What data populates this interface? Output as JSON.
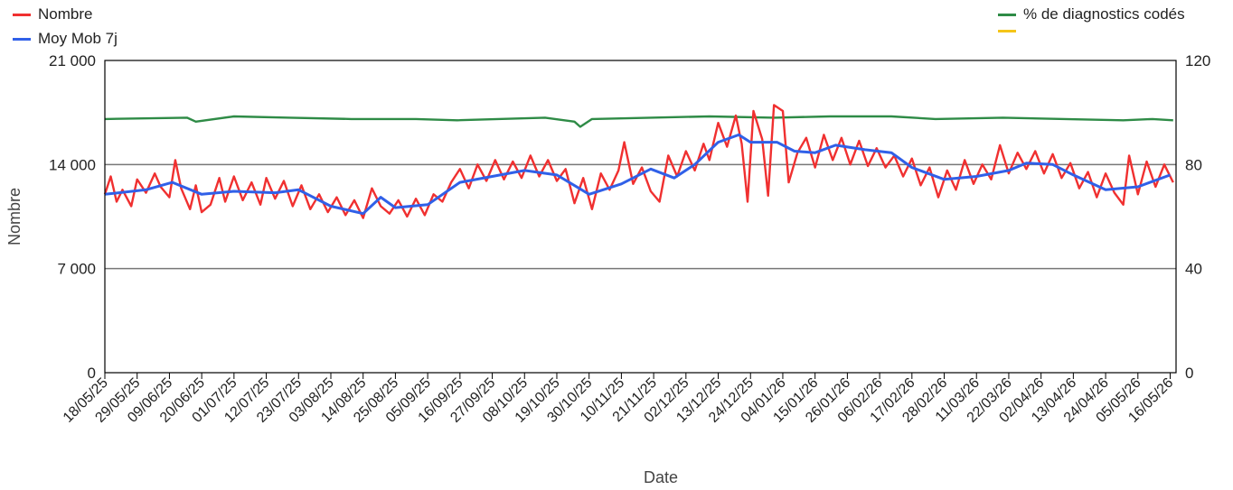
{
  "chart_data": {
    "type": "line",
    "xlabel": "Date",
    "ylabel": "Nombre",
    "ylim": [
      0,
      21000
    ],
    "y2lim": [
      0,
      120
    ],
    "yticks": [
      "0",
      "7 000",
      "14 000",
      "21 000"
    ],
    "y2ticks": [
      "0",
      "40",
      "80",
      "120"
    ],
    "x_start": "2025-05-18",
    "x_end": "2026-05-18",
    "x_tick_labels": [
      "18/05/25",
      "29/05/25",
      "09/06/25",
      "20/06/25",
      "01/07/25",
      "12/07/25",
      "23/07/25",
      "03/08/25",
      "14/08/25",
      "25/08/25",
      "05/09/25",
      "16/09/25",
      "27/09/25",
      "08/10/25",
      "19/10/25",
      "30/10/25",
      "10/11/25",
      "21/11/25",
      "02/12/25",
      "13/12/25",
      "24/12/25",
      "04/01/26",
      "15/01/26",
      "26/01/26",
      "06/02/26",
      "17/02/26",
      "28/02/26",
      "11/03/26",
      "22/03/26",
      "02/04/26",
      "13/04/26",
      "24/04/26",
      "05/05/26",
      "16/05/26"
    ],
    "grid": true,
    "legend_left": [
      {
        "label": "Nombre",
        "color": "#f03030"
      },
      {
        "label": "Moy Mob 7j",
        "color": "#3060e8"
      }
    ],
    "legend_right": [
      {
        "label": "% de diagnostics codés",
        "color": "#2e8b46"
      },
      {
        "label": "",
        "color": "#f5c518"
      }
    ],
    "series": [
      {
        "name": "Moy Mob 7j",
        "axis": "left",
        "color": "#3060e8",
        "points": [
          [
            "2025-05-18",
            12000
          ],
          [
            "2025-06-01",
            12300
          ],
          [
            "2025-06-10",
            12800
          ],
          [
            "2025-06-20",
            12000
          ],
          [
            "2025-07-01",
            12200
          ],
          [
            "2025-07-15",
            12100
          ],
          [
            "2025-07-23",
            12300
          ],
          [
            "2025-08-03",
            11200
          ],
          [
            "2025-08-14",
            10700
          ],
          [
            "2025-08-20",
            11800
          ],
          [
            "2025-08-25",
            11100
          ],
          [
            "2025-09-05",
            11300
          ],
          [
            "2025-09-16",
            12800
          ],
          [
            "2025-09-27",
            13200
          ],
          [
            "2025-10-08",
            13600
          ],
          [
            "2025-10-19",
            13300
          ],
          [
            "2025-10-30",
            12000
          ],
          [
            "2025-11-10",
            12700
          ],
          [
            "2025-11-20",
            13700
          ],
          [
            "2025-11-28",
            13100
          ],
          [
            "2025-12-05",
            14000
          ],
          [
            "2025-12-13",
            15500
          ],
          [
            "2025-12-20",
            16000
          ],
          [
            "2025-12-24",
            15500
          ],
          [
            "2026-01-02",
            15500
          ],
          [
            "2026-01-08",
            14900
          ],
          [
            "2026-01-15",
            14800
          ],
          [
            "2026-01-22",
            15300
          ],
          [
            "2026-02-01",
            15000
          ],
          [
            "2026-02-10",
            14800
          ],
          [
            "2026-02-17",
            13800
          ],
          [
            "2026-02-28",
            13000
          ],
          [
            "2026-03-11",
            13200
          ],
          [
            "2026-03-22",
            13600
          ],
          [
            "2026-03-28",
            14100
          ],
          [
            "2026-04-06",
            14000
          ],
          [
            "2026-04-13",
            13300
          ],
          [
            "2026-04-24",
            12300
          ],
          [
            "2026-05-05",
            12500
          ],
          [
            "2026-05-16",
            13300
          ]
        ]
      },
      {
        "name": "Nombre",
        "axis": "left",
        "color": "#f03030",
        "points": [
          [
            "2025-05-18",
            12000
          ],
          [
            "2025-05-20",
            13200
          ],
          [
            "2025-05-22",
            11500
          ],
          [
            "2025-05-24",
            12300
          ],
          [
            "2025-05-27",
            11200
          ],
          [
            "2025-05-29",
            13000
          ],
          [
            "2025-06-01",
            12100
          ],
          [
            "2025-06-04",
            13400
          ],
          [
            "2025-06-06",
            12500
          ],
          [
            "2025-06-09",
            11800
          ],
          [
            "2025-06-11",
            14300
          ],
          [
            "2025-06-13",
            12400
          ],
          [
            "2025-06-16",
            11000
          ],
          [
            "2025-06-18",
            12600
          ],
          [
            "2025-06-20",
            10800
          ],
          [
            "2025-06-23",
            11300
          ],
          [
            "2025-06-26",
            13100
          ],
          [
            "2025-06-28",
            11500
          ],
          [
            "2025-07-01",
            13200
          ],
          [
            "2025-07-04",
            11600
          ],
          [
            "2025-07-07",
            12800
          ],
          [
            "2025-07-10",
            11300
          ],
          [
            "2025-07-12",
            13100
          ],
          [
            "2025-07-15",
            11700
          ],
          [
            "2025-07-18",
            12900
          ],
          [
            "2025-07-21",
            11200
          ],
          [
            "2025-07-24",
            12600
          ],
          [
            "2025-07-27",
            11000
          ],
          [
            "2025-07-30",
            12000
          ],
          [
            "2025-08-02",
            10800
          ],
          [
            "2025-08-05",
            11800
          ],
          [
            "2025-08-08",
            10600
          ],
          [
            "2025-08-11",
            11600
          ],
          [
            "2025-08-14",
            10400
          ],
          [
            "2025-08-17",
            12400
          ],
          [
            "2025-08-20",
            11200
          ],
          [
            "2025-08-23",
            10700
          ],
          [
            "2025-08-26",
            11600
          ],
          [
            "2025-08-29",
            10500
          ],
          [
            "2025-09-01",
            11700
          ],
          [
            "2025-09-04",
            10600
          ],
          [
            "2025-09-07",
            12000
          ],
          [
            "2025-09-10",
            11500
          ],
          [
            "2025-09-13",
            12800
          ],
          [
            "2025-09-16",
            13700
          ],
          [
            "2025-09-19",
            12400
          ],
          [
            "2025-09-22",
            14000
          ],
          [
            "2025-09-25",
            12900
          ],
          [
            "2025-09-28",
            14300
          ],
          [
            "2025-10-01",
            13000
          ],
          [
            "2025-10-04",
            14200
          ],
          [
            "2025-10-07",
            13100
          ],
          [
            "2025-10-10",
            14600
          ],
          [
            "2025-10-13",
            13200
          ],
          [
            "2025-10-16",
            14300
          ],
          [
            "2025-10-19",
            12900
          ],
          [
            "2025-10-22",
            13700
          ],
          [
            "2025-10-25",
            11400
          ],
          [
            "2025-10-28",
            13100
          ],
          [
            "2025-10-31",
            11000
          ],
          [
            "2025-11-03",
            13400
          ],
          [
            "2025-11-06",
            12300
          ],
          [
            "2025-11-09",
            13600
          ],
          [
            "2025-11-11",
            15500
          ],
          [
            "2025-11-14",
            12700
          ],
          [
            "2025-11-17",
            13800
          ],
          [
            "2025-11-20",
            12200
          ],
          [
            "2025-11-23",
            11500
          ],
          [
            "2025-11-26",
            14600
          ],
          [
            "2025-11-29",
            13200
          ],
          [
            "2025-12-02",
            14900
          ],
          [
            "2025-12-05",
            13600
          ],
          [
            "2025-12-08",
            15400
          ],
          [
            "2025-12-10",
            14300
          ],
          [
            "2025-12-13",
            16800
          ],
          [
            "2025-12-16",
            15200
          ],
          [
            "2025-12-19",
            17300
          ],
          [
            "2025-12-21",
            15400
          ],
          [
            "2025-12-23",
            11500
          ],
          [
            "2025-12-25",
            17600
          ],
          [
            "2025-12-28",
            15700
          ],
          [
            "2025-12-30",
            11900
          ],
          [
            "2026-01-01",
            18000
          ],
          [
            "2026-01-04",
            17600
          ],
          [
            "2026-01-06",
            12800
          ],
          [
            "2026-01-09",
            14800
          ],
          [
            "2026-01-12",
            15800
          ],
          [
            "2026-01-15",
            13800
          ],
          [
            "2026-01-18",
            16000
          ],
          [
            "2026-01-21",
            14300
          ],
          [
            "2026-01-24",
            15800
          ],
          [
            "2026-01-27",
            14000
          ],
          [
            "2026-01-30",
            15600
          ],
          [
            "2026-02-02",
            13900
          ],
          [
            "2026-02-05",
            15100
          ],
          [
            "2026-02-08",
            13800
          ],
          [
            "2026-02-11",
            14600
          ],
          [
            "2026-02-14",
            13200
          ],
          [
            "2026-02-17",
            14400
          ],
          [
            "2026-02-20",
            12600
          ],
          [
            "2026-02-23",
            13800
          ],
          [
            "2026-02-26",
            11800
          ],
          [
            "2026-03-01",
            13600
          ],
          [
            "2026-03-04",
            12300
          ],
          [
            "2026-03-07",
            14300
          ],
          [
            "2026-03-10",
            12700
          ],
          [
            "2026-03-13",
            14000
          ],
          [
            "2026-03-16",
            13000
          ],
          [
            "2026-03-19",
            15300
          ],
          [
            "2026-03-22",
            13400
          ],
          [
            "2026-03-25",
            14800
          ],
          [
            "2026-03-28",
            13700
          ],
          [
            "2026-03-31",
            14900
          ],
          [
            "2026-04-03",
            13400
          ],
          [
            "2026-04-06",
            14700
          ],
          [
            "2026-04-09",
            13100
          ],
          [
            "2026-04-12",
            14100
          ],
          [
            "2026-04-15",
            12400
          ],
          [
            "2026-04-18",
            13500
          ],
          [
            "2026-04-21",
            11800
          ],
          [
            "2026-04-24",
            13400
          ],
          [
            "2026-04-27",
            12100
          ],
          [
            "2026-04-30",
            11300
          ],
          [
            "2026-05-02",
            14600
          ],
          [
            "2026-05-05",
            12000
          ],
          [
            "2026-05-08",
            14200
          ],
          [
            "2026-05-11",
            12500
          ],
          [
            "2026-05-14",
            14000
          ],
          [
            "2026-05-17",
            12800
          ]
        ]
      },
      {
        "name": "% de diagnostics codés",
        "axis": "right",
        "color": "#2e8b46",
        "points": [
          [
            "2025-05-18",
            97.5
          ],
          [
            "2025-06-15",
            98
          ],
          [
            "2025-06-18",
            96.5
          ],
          [
            "2025-07-01",
            98.5
          ],
          [
            "2025-07-20",
            98
          ],
          [
            "2025-08-10",
            97.5
          ],
          [
            "2025-09-01",
            97.5
          ],
          [
            "2025-09-15",
            97
          ],
          [
            "2025-10-15",
            98
          ],
          [
            "2025-10-25",
            96.5
          ],
          [
            "2025-10-27",
            94.5
          ],
          [
            "2025-10-31",
            97.5
          ],
          [
            "2025-11-20",
            98
          ],
          [
            "2025-12-10",
            98.5
          ],
          [
            "2026-01-01",
            98
          ],
          [
            "2026-01-20",
            98.5
          ],
          [
            "2026-02-10",
            98.5
          ],
          [
            "2026-02-25",
            97.5
          ],
          [
            "2026-03-20",
            98
          ],
          [
            "2026-04-10",
            97.5
          ],
          [
            "2026-04-30",
            97
          ],
          [
            "2026-05-10",
            97.5
          ],
          [
            "2026-05-17",
            97
          ]
        ]
      }
    ]
  }
}
